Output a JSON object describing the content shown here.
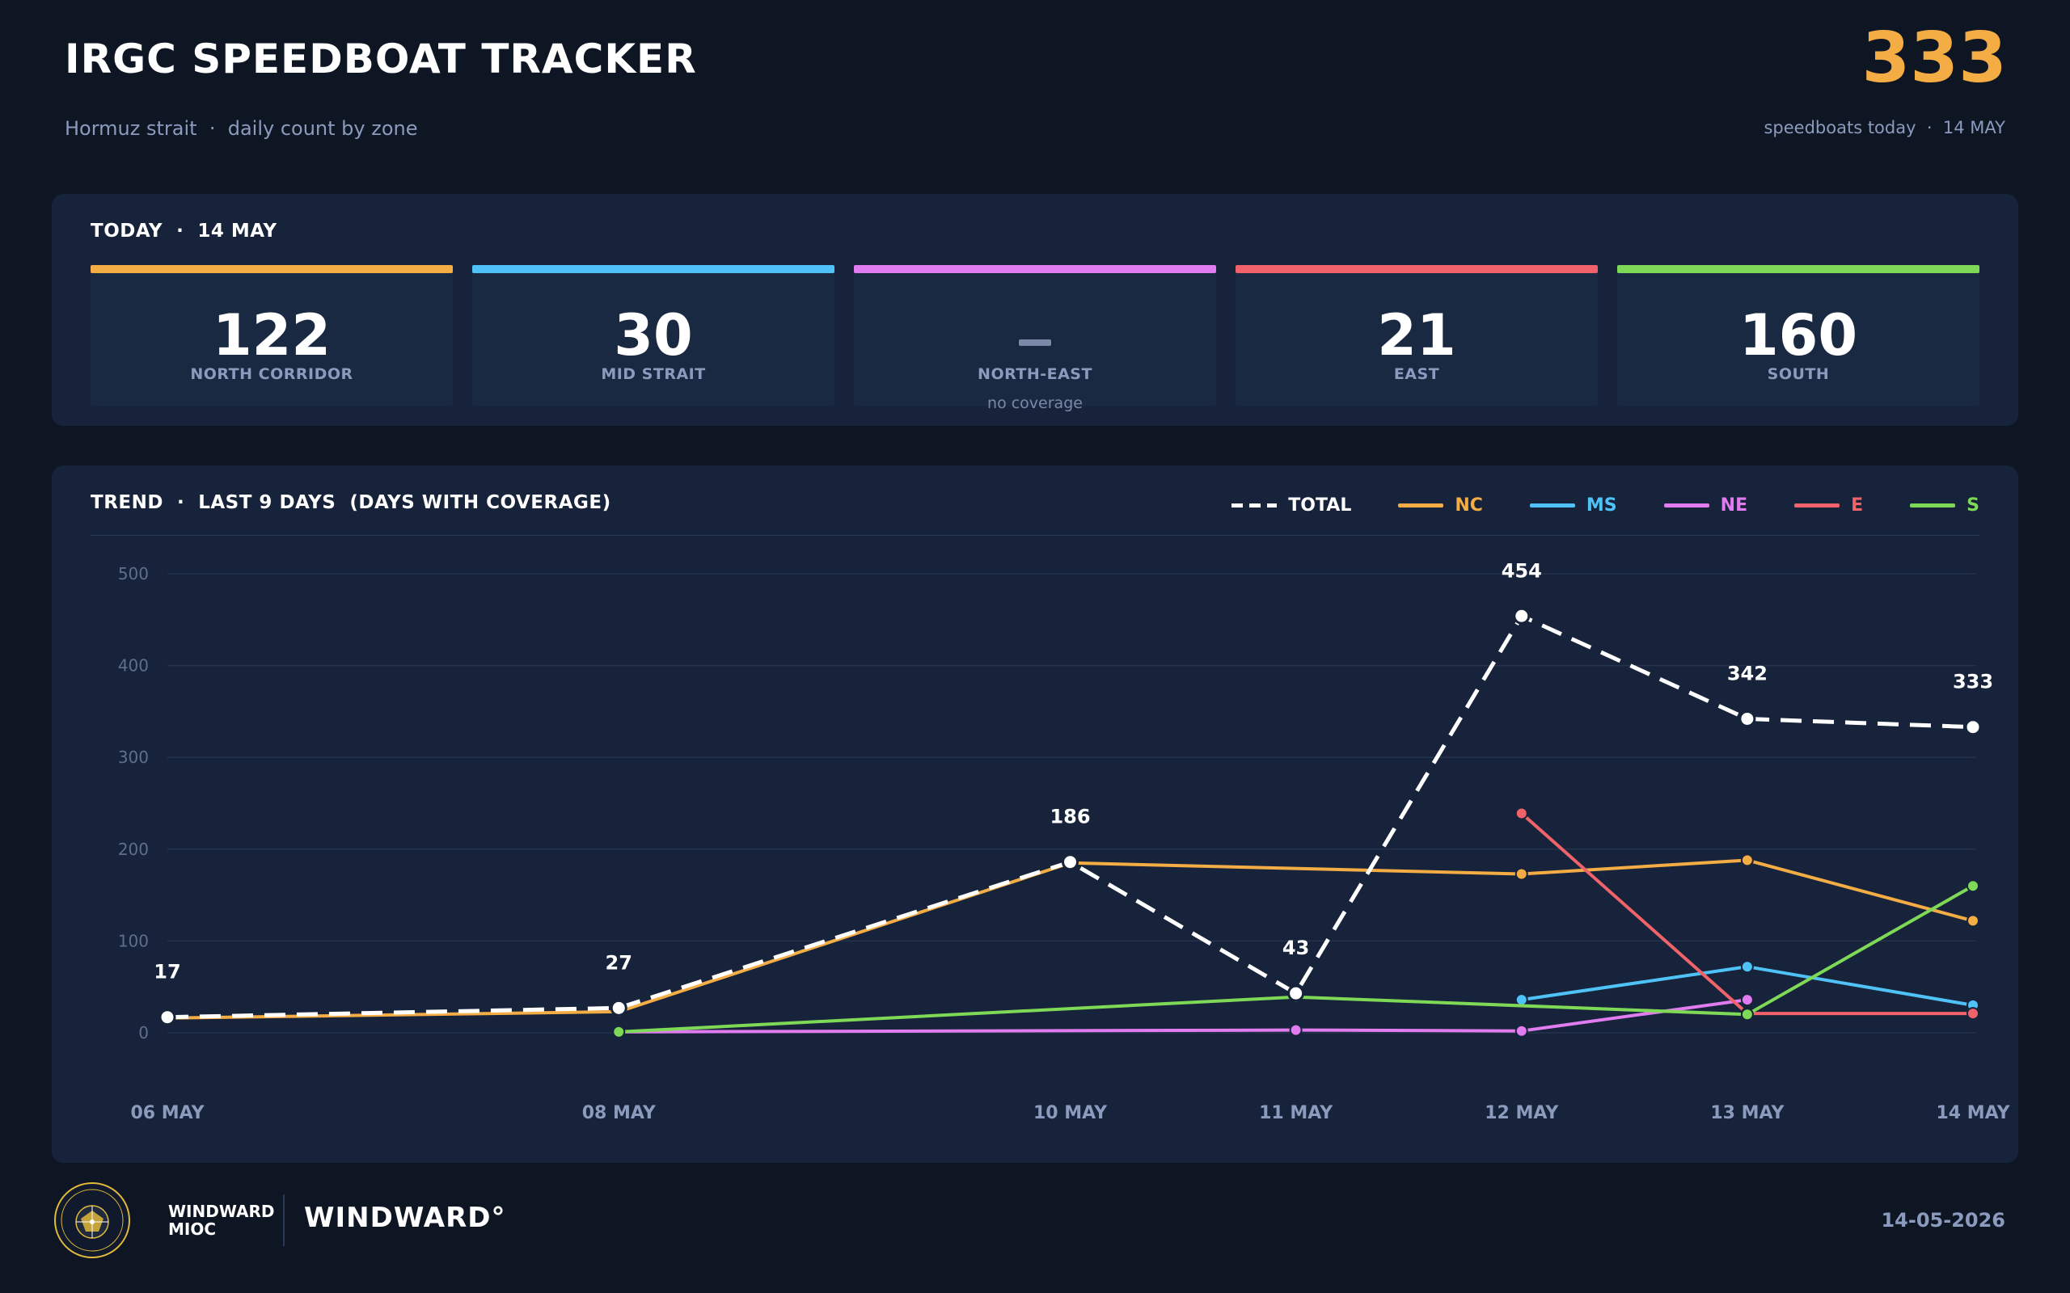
{
  "header": {
    "title": "IRGC SPEEDBOAT TRACKER",
    "subtitle": "Hormuz strait  ·  daily count by zone",
    "total_value": "333",
    "total_caption": "speedboats today  ·  14 MAY"
  },
  "today": {
    "heading": "TODAY  ·  14 MAY",
    "zones": [
      {
        "name": "NORTH CORRIDOR",
        "value": "122",
        "color": "#f4ac45"
      },
      {
        "name": "MID STRAIT",
        "value": "30",
        "color": "#4fc3f7"
      },
      {
        "name": "NORTH-EAST",
        "value": null,
        "note": "no coverage",
        "color": "#e07cf0"
      },
      {
        "name": "EAST",
        "value": "21",
        "color": "#f0636b"
      },
      {
        "name": "SOUTH",
        "value": "160",
        "color": "#7ed957"
      }
    ]
  },
  "trend": {
    "heading": "TREND  ·  LAST 9 DAYS  (DAYS WITH COVERAGE)",
    "legend": [
      {
        "label": "TOTAL",
        "color": "#ffffff",
        "dashed": true
      },
      {
        "label": "NC",
        "color": "#f4ac45"
      },
      {
        "label": "MS",
        "color": "#4fc3f7"
      },
      {
        "label": "NE",
        "color": "#e07cf0"
      },
      {
        "label": "E",
        "color": "#f0636b"
      },
      {
        "label": "S",
        "color": "#7ed957"
      }
    ]
  },
  "chart_data": {
    "type": "line",
    "x": [
      "2026-05-06",
      "2026-05-08",
      "2026-05-10",
      "2026-05-11",
      "2026-05-12",
      "2026-05-13",
      "2026-05-14"
    ],
    "x_tick_labels": [
      "06 MAY",
      "08 MAY",
      "10 MAY",
      "11 MAY",
      "12 MAY",
      "13 MAY",
      "14 MAY"
    ],
    "ylim": [
      0,
      500
    ],
    "y_ticks": [
      0,
      100,
      200,
      300,
      400,
      500
    ],
    "grid": true,
    "legend_position": "top-right",
    "series": [
      {
        "name": "TOTAL",
        "color": "#ffffff",
        "dashed": true,
        "values": [
          17,
          27,
          186,
          43,
          454,
          342,
          333
        ],
        "labels_shown": true
      },
      {
        "name": "NC",
        "color": "#f4ac45",
        "values": [
          16,
          23,
          185,
          null,
          173,
          188,
          122
        ]
      },
      {
        "name": "MS",
        "color": "#4fc3f7",
        "values": [
          null,
          null,
          null,
          null,
          36,
          72,
          30
        ]
      },
      {
        "name": "NE",
        "color": "#e07cf0",
        "values": [
          null,
          1,
          null,
          3,
          2,
          36,
          null
        ]
      },
      {
        "name": "E",
        "color": "#f0636b",
        "values": [
          null,
          null,
          null,
          null,
          239,
          21,
          21
        ]
      },
      {
        "name": "S",
        "color": "#7ed957",
        "values": [
          null,
          1,
          null,
          39,
          null,
          20,
          160
        ]
      }
    ]
  },
  "footer": {
    "org_line1": "WINDWARD",
    "org_line2": "MIOC",
    "brand": "WINDWARD°",
    "date": "14-05-2026",
    "logo_text": "WINDWARD MIOC"
  }
}
